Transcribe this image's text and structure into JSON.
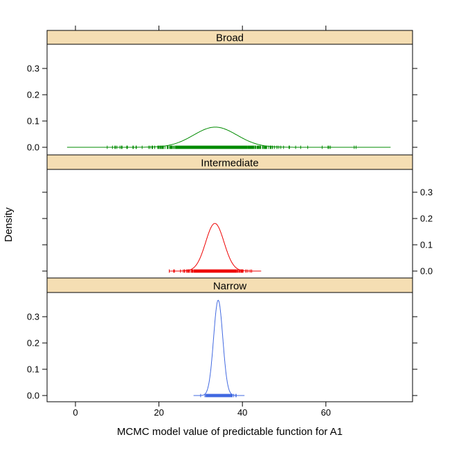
{
  "chart_data": {
    "type": "density",
    "title": "",
    "xlabel": "MCMC model value of predictable function for A1",
    "ylabel": "Density",
    "x_axis": {
      "ticks": [
        0,
        20,
        40,
        60
      ],
      "tick_labels": [
        "0",
        "20",
        "40",
        "60"
      ],
      "range": [
        -6.8,
        80.9
      ],
      "position": "top-and-bottom"
    },
    "y_axis": {
      "ticks": [
        0.0,
        0.1,
        0.2,
        0.3
      ],
      "tick_labels": [
        "0.0",
        "0.1",
        "0.2",
        "0.3"
      ],
      "range": [
        -0.026,
        0.392
      ],
      "alternating": true
    },
    "strip_fill": "#F5DEB3",
    "strip_border": "#000000",
    "panel_border": "#000000",
    "grid": false,
    "legend": "none",
    "panels": [
      {
        "label": "Broad",
        "color": "#008B00",
        "y_labels_side": "left",
        "density": {
          "mean": 33.5,
          "sd": 5.2,
          "peak": 0.077
        },
        "curve_range": [
          -2.0,
          75.5
        ],
        "rug": {
          "n": 1200,
          "range": [
            -2.5,
            75.5
          ],
          "outlier_sd": 16,
          "outlier_frac": 0.08,
          "seed": 101
        }
      },
      {
        "label": "Intermediate",
        "color": "#EE0000",
        "y_labels_side": "right",
        "density": {
          "mean": 33.4,
          "sd": 2.2,
          "peak": 0.181
        },
        "curve_range": [
          22.5,
          44.5
        ],
        "rug": {
          "n": 1200,
          "range": [
            22.3,
            44.6
          ],
          "outlier_sd": 4.6,
          "outlier_frac": 0.07,
          "seed": 202
        }
      },
      {
        "label": "Narrow",
        "color": "#4169E1",
        "y_labels_side": "left",
        "density": {
          "mean": 34.2,
          "sd": 1.1,
          "peak": 0.365
        },
        "curve_range": [
          28.3,
          40.5
        ],
        "rug": {
          "n": 1200,
          "range": [
            27.9,
            40.5
          ],
          "outlier_sd": 2.2,
          "outlier_frac": 0.06,
          "seed": 303
        }
      }
    ]
  }
}
